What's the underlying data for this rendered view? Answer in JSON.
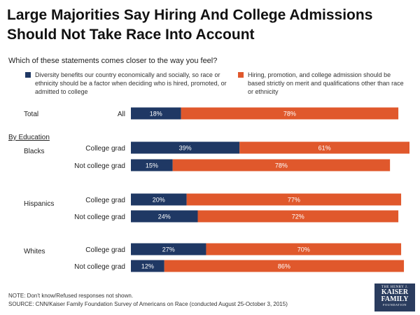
{
  "title": "Large Majorities Say Hiring And College Admissions Should Not Take Race Into Account",
  "question": "Which of these statements comes closer to the way you feel?",
  "by_education_label": "By Education",
  "footer": {
    "note": "NOTE: Don't know/Refused responses not shown.",
    "source": "SOURCE: CNN/Kaiser Family Foundation Survey of Americans on Race (conducted August 25-October 3, 2015)"
  },
  "logo": {
    "line1": "THE HENRY J.",
    "line2": "KAISER",
    "line3": "FAMILY",
    "line4": "FOUNDATION"
  },
  "colors": {
    "navy": "#1f3864",
    "orange": "#e0582c"
  },
  "chart_data": {
    "type": "bar",
    "orientation": "horizontal",
    "stacked": true,
    "xlim": [
      0,
      100
    ],
    "legend": [
      {
        "name": "Diversity benefits our country economically and socially, so race or ethnicity should be a factor when deciding who is hired, promoted, or admitted to college",
        "color": "#1f3864"
      },
      {
        "name": "Hiring, promotion, and college admission should be based strictly on merit and qualifications other than race or ethnicity",
        "color": "#e0582c"
      }
    ],
    "groups": [
      {
        "name": "Total",
        "rows": [
          {
            "label": "All",
            "values": [
              18,
              78
            ],
            "labels": [
              "18%",
              "78%"
            ]
          }
        ]
      },
      {
        "name": "Blacks",
        "rows": [
          {
            "label": "College grad",
            "values": [
              39,
              61
            ],
            "labels": [
              "39%",
              "61%"
            ]
          },
          {
            "label": "Not college grad",
            "values": [
              15,
              78
            ],
            "labels": [
              "15%",
              "78%"
            ]
          }
        ]
      },
      {
        "name": "Hispanics",
        "rows": [
          {
            "label": "College grad",
            "values": [
              20,
              77
            ],
            "labels": [
              "20%",
              "77%"
            ]
          },
          {
            "label": "Not college grad",
            "values": [
              24,
              72
            ],
            "labels": [
              "24%",
              "72%"
            ]
          }
        ]
      },
      {
        "name": "Whites",
        "rows": [
          {
            "label": "College grad",
            "values": [
              27,
              70
            ],
            "labels": [
              "27%",
              "70%"
            ]
          },
          {
            "label": "Not college grad",
            "values": [
              12,
              86
            ],
            "labels": [
              "12%",
              "86%"
            ]
          }
        ]
      }
    ]
  }
}
